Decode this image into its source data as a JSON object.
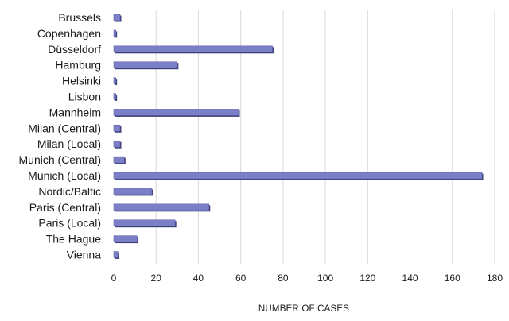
{
  "chart_data": {
    "type": "bar",
    "orientation": "horizontal",
    "title": "",
    "xlabel": "NUMBER OF CASES",
    "ylabel": "",
    "xlim": [
      0,
      180
    ],
    "xticks": [
      0,
      20,
      40,
      60,
      80,
      100,
      120,
      140,
      160,
      180
    ],
    "grid": true,
    "categories": [
      "Brussels",
      "Copenhagen",
      "Düsseldorf",
      "Hamburg",
      "Helsinki",
      "Lisbon",
      "Mannheim",
      "Milan (Central)",
      "Milan (Local)",
      "Munich (Central)",
      "Munich (Local)",
      "Nordic/Baltic",
      "Paris (Central)",
      "Paris (Local)",
      "The Hague",
      "Vienna"
    ],
    "values": [
      3,
      1,
      75,
      30,
      1,
      1,
      59,
      3,
      3,
      5,
      174,
      18,
      45,
      29,
      11,
      2
    ],
    "bar_color": "#7b7fc8",
    "bar_shadow_color": "#3d3f78"
  }
}
